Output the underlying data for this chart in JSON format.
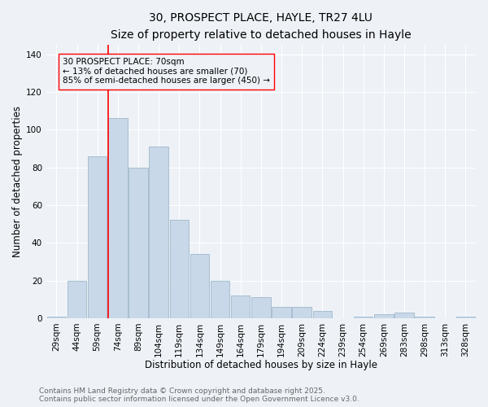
{
  "title": "30, PROSPECT PLACE, HAYLE, TR27 4LU",
  "subtitle": "Size of property relative to detached houses in Hayle",
  "xlabel": "Distribution of detached houses by size in Hayle",
  "ylabel": "Number of detached properties",
  "categories": [
    "29sqm",
    "44sqm",
    "59sqm",
    "74sqm",
    "89sqm",
    "104sqm",
    "119sqm",
    "134sqm",
    "149sqm",
    "164sqm",
    "179sqm",
    "194sqm",
    "209sqm",
    "224sqm",
    "239sqm",
    "254sqm",
    "269sqm",
    "283sqm",
    "298sqm",
    "313sqm",
    "328sqm"
  ],
  "values": [
    1,
    20,
    86,
    106,
    80,
    91,
    52,
    34,
    20,
    12,
    11,
    6,
    6,
    4,
    0,
    1,
    2,
    3,
    1,
    0,
    1
  ],
  "bar_color": "#c8d8e8",
  "bar_edge_color": "#a0b8cc",
  "ylim": [
    0,
    145
  ],
  "yticks": [
    0,
    20,
    40,
    60,
    80,
    100,
    120,
    140
  ],
  "redline_index": 2.55,
  "annotation_text": "30 PROSPECT PLACE: 70sqm\n← 13% of detached houses are smaller (70)\n85% of semi-detached houses are larger (450) →",
  "footer_line1": "Contains HM Land Registry data © Crown copyright and database right 2025.",
  "footer_line2": "Contains public sector information licensed under the Open Government Licence v3.0.",
  "background_color": "#eef2f7",
  "grid_color": "#ffffff",
  "title_fontsize": 10,
  "subtitle_fontsize": 9,
  "axis_label_fontsize": 8.5,
  "tick_fontsize": 7.5,
  "footer_fontsize": 6.5,
  "annotation_fontsize": 7.5
}
